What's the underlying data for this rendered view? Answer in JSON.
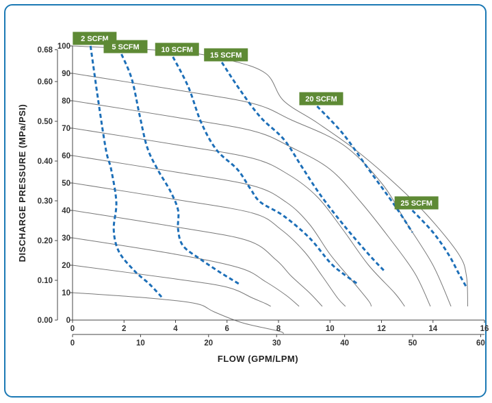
{
  "chart_data": {
    "type": "line",
    "xlabel": "FLOW (GPM/LPM)",
    "ylabel": "DISCHARGE PRESSURE (MPa/PSI)",
    "x_gpm_range": [
      0,
      16
    ],
    "x_gpm_ticks": [
      "0",
      "2",
      "4",
      "6",
      "8",
      "10",
      "12",
      "14",
      "16"
    ],
    "x_lpm_ticks": [
      {
        "label": "0",
        "v": 0
      },
      {
        "label": "10",
        "v": 10
      },
      {
        "label": "20",
        "v": 20
      },
      {
        "label": "30",
        "v": 30
      },
      {
        "label": "40",
        "v": 40
      },
      {
        "label": "50",
        "v": 50
      },
      {
        "label": "60",
        "v": 60
      }
    ],
    "y_psi_range": [
      0,
      100
    ],
    "y_psi_ticks": [
      "0",
      "10",
      "20",
      "30",
      "40",
      "50",
      "60",
      "70",
      "80",
      "90",
      "100"
    ],
    "y_mpa_ticks": [
      {
        "label": "0.00",
        "v": 0
      },
      {
        "label": "0.10",
        "v": 14.5
      },
      {
        "label": "0.20",
        "v": 29
      },
      {
        "label": "0.30",
        "v": 43.5
      },
      {
        "label": "0.40",
        "v": 58
      },
      {
        "label": "0.50",
        "v": 72.5
      },
      {
        "label": "0.60",
        "v": 87
      },
      {
        "label": "0.68",
        "v": 98.6
      }
    ],
    "inlet_pressure_curves": [
      {
        "points": [
          [
            0,
            100
          ],
          [
            4,
            98
          ],
          [
            6,
            95
          ],
          [
            7.5,
            90
          ],
          [
            8.2,
            80
          ],
          [
            9.5,
            72
          ],
          [
            11,
            62
          ],
          [
            12.5,
            50
          ],
          [
            13.8,
            38
          ],
          [
            15,
            24
          ],
          [
            15.3,
            16
          ],
          [
            15.35,
            5
          ]
        ]
      },
      {
        "points": [
          [
            0,
            90
          ],
          [
            4,
            84
          ],
          [
            7,
            79
          ],
          [
            8.5,
            73
          ],
          [
            10.5,
            64
          ],
          [
            12,
            50
          ],
          [
            13,
            35
          ],
          [
            14,
            20
          ],
          [
            14.7,
            5
          ]
        ]
      },
      {
        "points": [
          [
            0,
            80
          ],
          [
            4,
            74
          ],
          [
            7,
            69
          ],
          [
            8.5,
            63
          ],
          [
            10,
            55
          ],
          [
            11.2,
            43
          ],
          [
            12.3,
            30
          ],
          [
            13.3,
            17
          ],
          [
            13.9,
            5
          ]
        ]
      },
      {
        "points": [
          [
            0,
            70
          ],
          [
            4,
            64
          ],
          [
            7,
            59
          ],
          [
            8.4,
            53
          ],
          [
            9.5,
            45
          ],
          [
            10.5,
            33
          ],
          [
            11.5,
            20
          ],
          [
            12.5,
            10
          ],
          [
            12.9,
            5
          ]
        ]
      },
      {
        "points": [
          [
            0,
            60
          ],
          [
            4,
            54
          ],
          [
            7,
            49
          ],
          [
            8.3,
            43
          ],
          [
            9.2,
            35
          ],
          [
            10,
            24
          ],
          [
            10.8,
            15
          ],
          [
            11.5,
            7
          ],
          [
            11.6,
            5
          ]
        ]
      },
      {
        "points": [
          [
            0,
            50
          ],
          [
            4,
            44
          ],
          [
            7,
            39
          ],
          [
            8.1,
            33
          ],
          [
            9,
            25
          ],
          [
            9.7,
            16
          ],
          [
            10.3,
            8
          ],
          [
            10.6,
            5
          ]
        ]
      },
      {
        "points": [
          [
            0,
            40
          ],
          [
            4,
            34
          ],
          [
            6.8,
            29
          ],
          [
            7.9,
            22
          ],
          [
            8.5,
            16
          ],
          [
            9.2,
            10
          ],
          [
            9.7,
            5
          ]
        ]
      },
      {
        "points": [
          [
            0,
            30
          ],
          [
            4,
            24
          ],
          [
            6.5,
            19
          ],
          [
            7.5,
            14
          ],
          [
            8.3,
            9
          ],
          [
            8.8,
            5
          ]
        ]
      },
      {
        "points": [
          [
            0,
            20
          ],
          [
            4,
            15
          ],
          [
            6,
            12
          ],
          [
            7,
            8
          ],
          [
            7.5,
            6
          ],
          [
            7.7,
            5
          ]
        ]
      },
      {
        "points": [
          [
            0,
            10
          ],
          [
            3,
            8
          ],
          [
            4.8,
            6
          ],
          [
            5.5,
            3
          ],
          [
            6.6,
            -1
          ],
          [
            8,
            -4
          ],
          [
            8.2,
            -5
          ]
        ]
      }
    ],
    "air_consumption_series": [
      {
        "name": "2 SCFM",
        "label": "2 SCFM",
        "points": [
          [
            0.7,
            100
          ],
          [
            1,
            80
          ],
          [
            1.3,
            62
          ],
          [
            1.5,
            55
          ],
          [
            1.7,
            43
          ],
          [
            1.6,
            33
          ],
          [
            1.8,
            25
          ],
          [
            2.4,
            18
          ],
          [
            3,
            13
          ],
          [
            3.5,
            8
          ]
        ]
      },
      {
        "name": "5 SCFM",
        "label": "5 SCFM",
        "points": [
          [
            1.9,
            97
          ],
          [
            2.3,
            88
          ],
          [
            2.6,
            75
          ],
          [
            2.9,
            63
          ],
          [
            3.3,
            55
          ],
          [
            3.8,
            47
          ],
          [
            4.1,
            40
          ],
          [
            4.1,
            33
          ],
          [
            4.3,
            27
          ],
          [
            5,
            22
          ],
          [
            5.8,
            17
          ],
          [
            6.5,
            13
          ]
        ]
      },
      {
        "name": "10 SCFM",
        "label": "10 SCFM",
        "points": [
          [
            3.9,
            96
          ],
          [
            4.5,
            85
          ],
          [
            5,
            72
          ],
          [
            5.6,
            62
          ],
          [
            6.4,
            55
          ],
          [
            6.9,
            48
          ],
          [
            7.3,
            43
          ],
          [
            8.2,
            38
          ],
          [
            9.2,
            30
          ],
          [
            10,
            21
          ],
          [
            10.5,
            17
          ],
          [
            11.1,
            13
          ]
        ]
      },
      {
        "name": "15 SCFM",
        "label": "15 SCFM",
        "points": [
          [
            5.8,
            94
          ],
          [
            6.5,
            84
          ],
          [
            7.3,
            74
          ],
          [
            8.2,
            66
          ],
          [
            8.9,
            56
          ],
          [
            9.6,
            46
          ],
          [
            10.5,
            35
          ],
          [
            11.5,
            24
          ],
          [
            12.1,
            18
          ]
        ]
      },
      {
        "name": "20 SCFM",
        "label": "20 SCFM",
        "points": [
          [
            9.5,
            78
          ],
          [
            10.5,
            68
          ],
          [
            11.5,
            55
          ],
          [
            12.5,
            42
          ],
          [
            13.2,
            32
          ]
        ]
      },
      {
        "name": "25 SCFM",
        "label": "25 SCFM",
        "points": [
          [
            13.2,
            40
          ],
          [
            14,
            32
          ],
          [
            14.6,
            24
          ],
          [
            15,
            17
          ],
          [
            15.3,
            12
          ]
        ]
      }
    ]
  }
}
